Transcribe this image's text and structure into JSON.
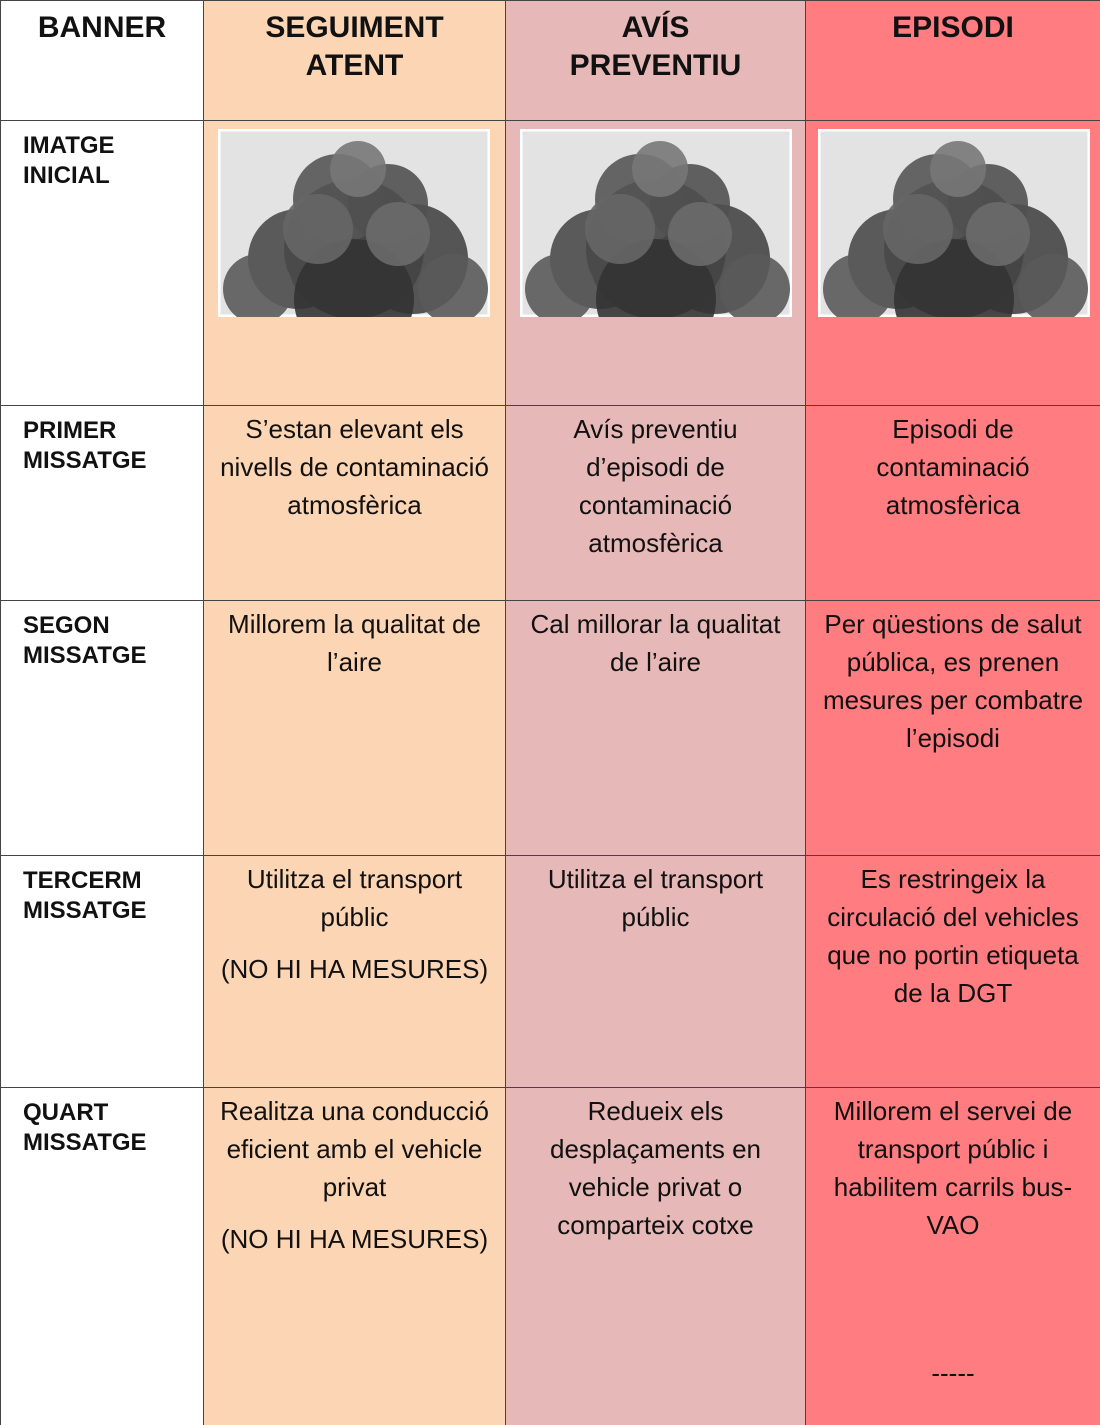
{
  "table": {
    "header": [
      "BANNER",
      "SEGUIMENT ATENT",
      "AVÍS PREVENTIU",
      "EPISODI"
    ],
    "image_row": {
      "label": "IMATGE INICIAL"
    },
    "rows": [
      {
        "label": "PRIMER MISSATGE",
        "cells": [
          [
            "S’estan elevant els nivells de contaminació atmosfèrica"
          ],
          [
            "Avís preventiu d’episodi de contaminació atmosfèrica"
          ],
          [
            "Episodi de contaminació atmosfèrica"
          ]
        ]
      },
      {
        "label": "SEGON MISSATGE",
        "cells": [
          [
            "Millorem la qualitat de l’aire"
          ],
          [
            "Cal millorar la qualitat de l’aire"
          ],
          [
            "Per qüestions de salut pública, es prenen mesures per combatre l’episodi"
          ]
        ]
      },
      {
        "label": "TERCERM MISSATGE",
        "cells": [
          [
            "Utilitza el transport públic",
            "(NO HI HA MESURES)"
          ],
          [
            "Utilitza el transport públic"
          ],
          [
            "Es restringeix la circulació del vehicles que no portin etiqueta de la DGT"
          ]
        ]
      },
      {
        "label": "QUART MISSATGE",
        "cells": [
          [
            "Realitza una conducció eficient amb el vehicle privat",
            "(NO HI HA MESURES)"
          ],
          [
            "Redueix els desplaçaments en vehicle privat o comparteix cotxe"
          ],
          [
            "Millorem el servei de transport públic i habilitem carrils bus-VAO",
            "-----"
          ]
        ]
      }
    ]
  }
}
